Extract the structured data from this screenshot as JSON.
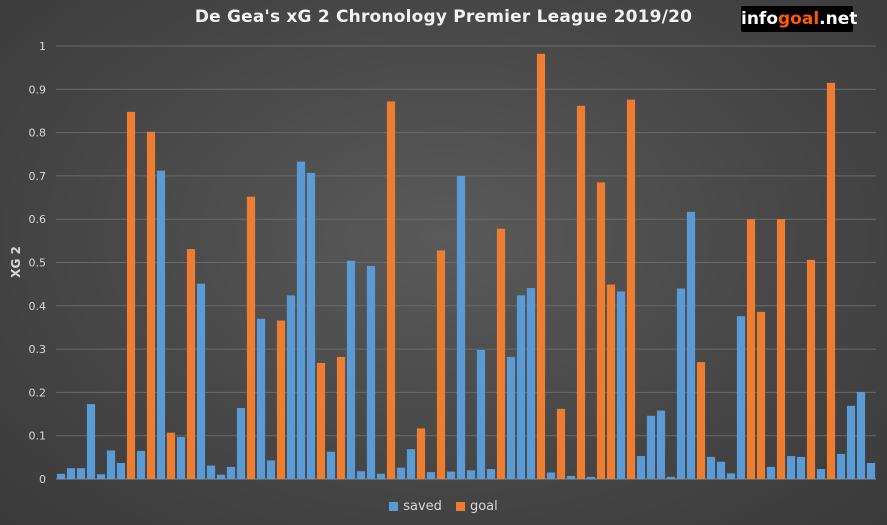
{
  "logo": {
    "prefix": "info",
    "highlight": "goal",
    "suffix": ".net"
  },
  "chart_data": {
    "type": "bar",
    "title": "De Gea's xG 2 Chronology Premier League 2019/20",
    "xlabel": "",
    "ylabel": "XG 2",
    "ylim": [
      0,
      1
    ],
    "yticks": [
      "0",
      "0.1",
      "0.2",
      "0.3",
      "0.4",
      "0.5",
      "0.6",
      "0.7",
      "0.8",
      "0.9",
      "1"
    ],
    "grid": true,
    "legend_position": "bottom",
    "series": [
      {
        "name": "saved",
        "color": "#5b9bd5"
      },
      {
        "name": "goal",
        "color": "#ed7d31"
      }
    ],
    "shots": [
      {
        "series": "saved",
        "value": 0.012
      },
      {
        "series": "saved",
        "value": 0.025
      },
      {
        "series": "saved",
        "value": 0.025
      },
      {
        "series": "saved",
        "value": 0.173
      },
      {
        "series": "saved",
        "value": 0.011
      },
      {
        "series": "saved",
        "value": 0.066
      },
      {
        "series": "saved",
        "value": 0.037
      },
      {
        "series": "goal",
        "value": 0.848
      },
      {
        "series": "saved",
        "value": 0.065
      },
      {
        "series": "goal",
        "value": 0.802
      },
      {
        "series": "saved",
        "value": 0.712
      },
      {
        "series": "goal",
        "value": 0.107
      },
      {
        "series": "saved",
        "value": 0.097
      },
      {
        "series": "goal",
        "value": 0.531
      },
      {
        "series": "saved",
        "value": 0.451
      },
      {
        "series": "saved",
        "value": 0.031
      },
      {
        "series": "saved",
        "value": 0.01
      },
      {
        "series": "saved",
        "value": 0.028
      },
      {
        "series": "saved",
        "value": 0.164
      },
      {
        "series": "goal",
        "value": 0.652
      },
      {
        "series": "saved",
        "value": 0.37
      },
      {
        "series": "saved",
        "value": 0.043
      },
      {
        "series": "goal",
        "value": 0.366
      },
      {
        "series": "saved",
        "value": 0.424
      },
      {
        "series": "saved",
        "value": 0.733
      },
      {
        "series": "saved",
        "value": 0.707
      },
      {
        "series": "goal",
        "value": 0.268
      },
      {
        "series": "saved",
        "value": 0.063
      },
      {
        "series": "goal",
        "value": 0.282
      },
      {
        "series": "saved",
        "value": 0.504
      },
      {
        "series": "saved",
        "value": 0.018
      },
      {
        "series": "saved",
        "value": 0.492
      },
      {
        "series": "saved",
        "value": 0.012
      },
      {
        "series": "goal",
        "value": 0.872
      },
      {
        "series": "saved",
        "value": 0.026
      },
      {
        "series": "saved",
        "value": 0.069
      },
      {
        "series": "goal",
        "value": 0.117
      },
      {
        "series": "saved",
        "value": 0.016
      },
      {
        "series": "goal",
        "value": 0.528
      },
      {
        "series": "saved",
        "value": 0.017
      },
      {
        "series": "saved",
        "value": 0.7
      },
      {
        "series": "saved",
        "value": 0.02
      },
      {
        "series": "saved",
        "value": 0.298
      },
      {
        "series": "saved",
        "value": 0.023
      },
      {
        "series": "goal",
        "value": 0.578
      },
      {
        "series": "saved",
        "value": 0.282
      },
      {
        "series": "saved",
        "value": 0.424
      },
      {
        "series": "saved",
        "value": 0.441
      },
      {
        "series": "goal",
        "value": 0.982
      },
      {
        "series": "saved",
        "value": 0.015
      },
      {
        "series": "goal",
        "value": 0.162
      },
      {
        "series": "saved",
        "value": 0.007
      },
      {
        "series": "goal",
        "value": 0.862
      },
      {
        "series": "saved",
        "value": 0.005
      },
      {
        "series": "goal",
        "value": 0.685
      },
      {
        "series": "goal",
        "value": 0.449
      },
      {
        "series": "saved",
        "value": 0.433
      },
      {
        "series": "goal",
        "value": 0.876
      },
      {
        "series": "saved",
        "value": 0.053
      },
      {
        "series": "saved",
        "value": 0.146
      },
      {
        "series": "saved",
        "value": 0.158
      },
      {
        "series": "saved",
        "value": 0.005
      },
      {
        "series": "saved",
        "value": 0.44
      },
      {
        "series": "saved",
        "value": 0.617
      },
      {
        "series": "goal",
        "value": 0.27
      },
      {
        "series": "saved",
        "value": 0.051
      },
      {
        "series": "saved",
        "value": 0.04
      },
      {
        "series": "saved",
        "value": 0.013
      },
      {
        "series": "saved",
        "value": 0.376
      },
      {
        "series": "goal",
        "value": 0.6
      },
      {
        "series": "goal",
        "value": 0.386
      },
      {
        "series": "saved",
        "value": 0.028
      },
      {
        "series": "goal",
        "value": 0.6
      },
      {
        "series": "saved",
        "value": 0.053
      },
      {
        "series": "saved",
        "value": 0.051
      },
      {
        "series": "goal",
        "value": 0.506
      },
      {
        "series": "saved",
        "value": 0.023
      },
      {
        "series": "goal",
        "value": 0.915
      },
      {
        "series": "saved",
        "value": 0.058
      },
      {
        "series": "saved",
        "value": 0.169
      },
      {
        "series": "saved",
        "value": 0.201
      },
      {
        "series": "saved",
        "value": 0.037
      }
    ]
  }
}
